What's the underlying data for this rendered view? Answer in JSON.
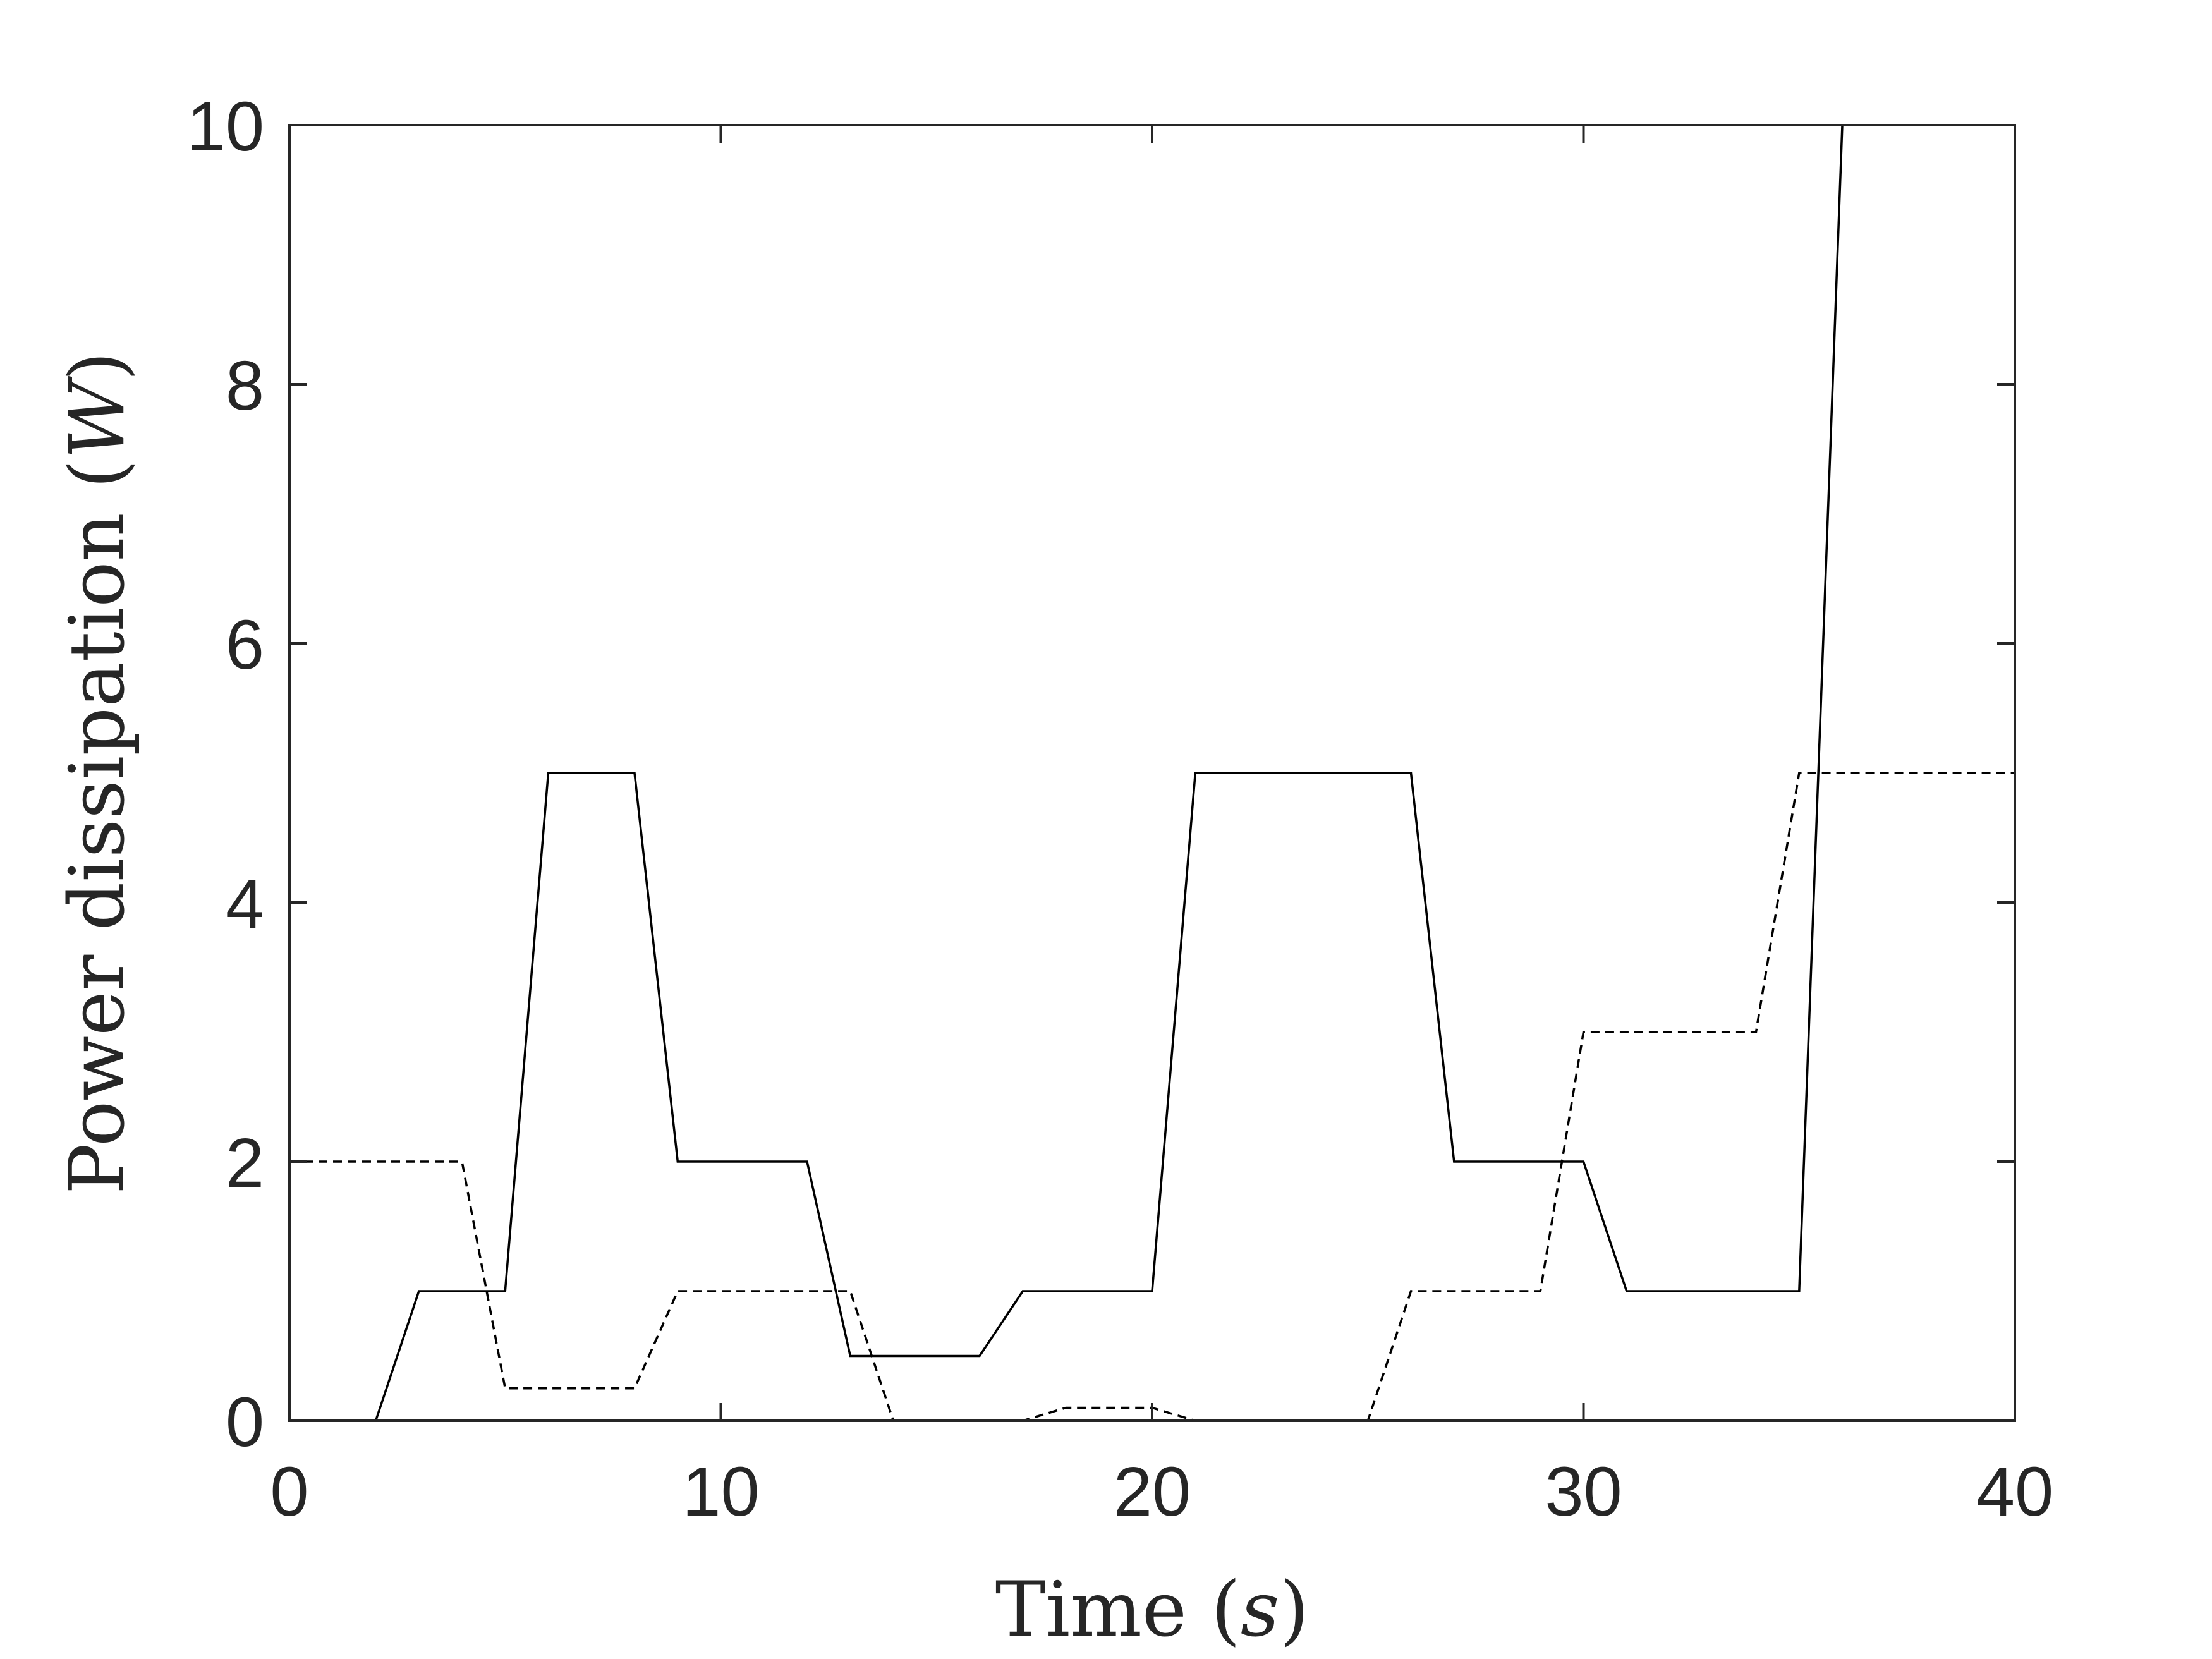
{
  "chart_data": {
    "type": "line",
    "xlabel": "Time",
    "xlabel_unit": "s",
    "ylabel": "Power dissipation",
    "ylabel_unit": "W",
    "xlim": [
      0,
      40
    ],
    "ylim": [
      0,
      10
    ],
    "x_ticks": [
      "0",
      "10",
      "20",
      "30",
      "40"
    ],
    "y_ticks": [
      "0",
      "2",
      "4",
      "6",
      "8",
      "10"
    ],
    "grid": false,
    "box": true,
    "series": [
      {
        "style": "solid",
        "color": "#000000",
        "x": [
          0,
          2,
          3,
          5,
          6,
          8,
          9,
          12,
          13,
          16,
          17,
          20,
          21,
          26,
          27,
          30,
          31,
          35,
          36,
          40
        ],
        "y": [
          0,
          0,
          1,
          1,
          5,
          5,
          2,
          2,
          0.5,
          0.5,
          1,
          1,
          5,
          5,
          2,
          2,
          1,
          1,
          10,
          10
        ]
      },
      {
        "style": "dashed",
        "color": "#000000",
        "x": [
          0,
          4,
          5,
          8,
          9,
          13,
          14,
          17,
          18,
          20,
          21,
          25,
          26,
          29,
          30,
          34,
          35,
          40
        ],
        "y": [
          2,
          2,
          0.25,
          0.25,
          1,
          1,
          0,
          0,
          0.1,
          0.1,
          0,
          0,
          1,
          1,
          3,
          3,
          5,
          5
        ]
      }
    ]
  }
}
